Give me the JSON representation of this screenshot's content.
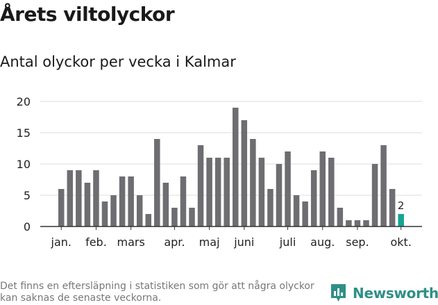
{
  "title": "Årets viltolyckor",
  "subtitle": "Antal olyckor per vecka i Kalmar",
  "footnote": "Det finns en eftersläpning i statistiken som gör att några olyckor kan saknas de senaste veckorna.",
  "brand": {
    "name": "Newsworthy",
    "icon": "newsworthy-logo-icon",
    "color": "#2e8f86"
  },
  "colors": {
    "bar": "#6e6d72",
    "highlight": "#16a394",
    "grid": "#dddddd",
    "axis": "#333333"
  },
  "chart_data": {
    "type": "bar",
    "title": "Årets viltolyckor",
    "subtitle": "Antal olyckor per vecka i Kalmar",
    "xlabel": "",
    "ylabel": "",
    "ylim": [
      0,
      20
    ],
    "yticks": [
      0,
      5,
      10,
      15,
      20
    ],
    "grid": true,
    "values": [
      6,
      9,
      9,
      7,
      9,
      4,
      5,
      8,
      8,
      5,
      2,
      14,
      7,
      3,
      8,
      3,
      13,
      11,
      11,
      11,
      19,
      17,
      14,
      11,
      6,
      10,
      12,
      5,
      4,
      9,
      12,
      11,
      3,
      1,
      1,
      1,
      10,
      13,
      6,
      2
    ],
    "highlight_index": 39,
    "highlight_label": "2",
    "month_labels": [
      {
        "label": "jan.",
        "index": 0
      },
      {
        "label": "feb.",
        "index": 4
      },
      {
        "label": "mars",
        "index": 8
      },
      {
        "label": "apr.",
        "index": 13
      },
      {
        "label": "maj",
        "index": 17
      },
      {
        "label": "juni",
        "index": 21
      },
      {
        "label": "juli",
        "index": 26
      },
      {
        "label": "aug.",
        "index": 30
      },
      {
        "label": "sep.",
        "index": 34
      },
      {
        "label": "okt.",
        "index": 39
      }
    ]
  }
}
